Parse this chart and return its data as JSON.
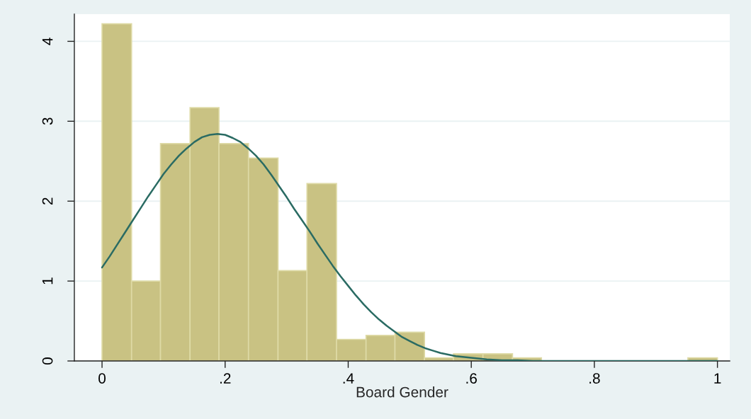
{
  "chart_data": {
    "type": "histogram",
    "xlabel": "Board Gender",
    "series": [
      {
        "type": "histogram",
        "color": "#c9c283",
        "bins": [
          0,
          0.048,
          0.095,
          0.143,
          0.19,
          0.238,
          0.286,
          0.333,
          0.381,
          0.429,
          0.476,
          0.524,
          0.571,
          0.619,
          0.667,
          0.714,
          0.952,
          1
        ],
        "values": [
          4.22,
          1.0,
          2.72,
          3.17,
          2.72,
          2.54,
          1.13,
          2.22,
          0.27,
          0.32,
          0.36,
          0.04,
          0.09,
          0.09,
          0.04,
          0,
          0.04
        ]
      },
      {
        "type": "line",
        "color": "#2a6b63",
        "x": [
          0,
          0.0125,
          0.025,
          0.0375,
          0.05,
          0.0625,
          0.075,
          0.0875,
          0.1,
          0.1125,
          0.125,
          0.1375,
          0.15,
          0.1625,
          0.175,
          0.1875,
          0.2,
          0.2125,
          0.225,
          0.2375,
          0.25,
          0.2625,
          0.275,
          0.2875,
          0.3,
          0.3125,
          0.325,
          0.3375,
          0.35,
          0.3625,
          0.375,
          0.3875,
          0.4,
          0.4125,
          0.425,
          0.4375,
          0.45,
          0.4625,
          0.475,
          0.4875,
          0.5,
          0.5125,
          0.525,
          0.5375,
          0.55,
          0.575,
          0.6,
          0.625,
          0.65,
          0.675,
          0.7,
          0.8,
          0.9,
          1.0
        ],
        "values": [
          1.17,
          1.31,
          1.46,
          1.61,
          1.76,
          1.91,
          2.06,
          2.2,
          2.34,
          2.46,
          2.57,
          2.66,
          2.74,
          2.8,
          2.83,
          2.84,
          2.83,
          2.79,
          2.74,
          2.66,
          2.57,
          2.46,
          2.33,
          2.19,
          2.05,
          1.9,
          1.76,
          1.62,
          1.47,
          1.33,
          1.19,
          1.06,
          0.94,
          0.82,
          0.71,
          0.61,
          0.52,
          0.44,
          0.37,
          0.3,
          0.25,
          0.2,
          0.16,
          0.13,
          0.1,
          0.06,
          0.04,
          0.02,
          0.01,
          0.01,
          0,
          0,
          0,
          0
        ]
      }
    ],
    "xlim": [
      -0.045,
      1.02
    ],
    "ylim": [
      0,
      4.34
    ],
    "xticks": [
      0,
      {
        "value": 0.2,
        "label": ".2"
      },
      {
        "value": 0.4,
        "label": ".4"
      },
      {
        "value": 0.6,
        "label": ".6"
      },
      {
        "value": 0.8,
        "label": ".8"
      },
      1
    ],
    "yticks": [
      0,
      1,
      2,
      3,
      4
    ],
    "grid": "y"
  }
}
